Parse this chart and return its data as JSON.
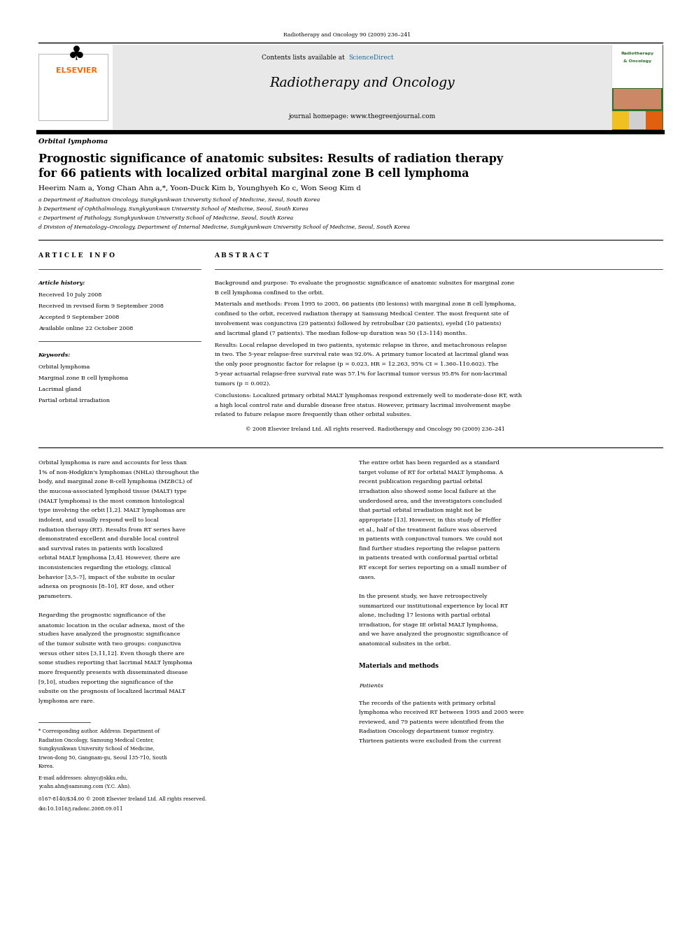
{
  "page_width": 9.92,
  "page_height": 13.23,
  "bg_color": "#ffffff",
  "journal_ref": "Radiotherapy and Oncology 90 (2009) 236–241",
  "elsevier_color": "#FF6600",
  "sciencedirect_color": "#1a6496",
  "journal_name": "Radiotherapy and Oncology",
  "journal_homepage": "journal homepage: www.thegreenjournal.com",
  "contents_text": "Contents lists available at",
  "sciencedirect_text": "ScienceDirect",
  "article_type": "Orbital lymphoma",
  "title_line1": "Prognostic significance of anatomic subsites: Results of radiation therapy",
  "title_line2": "for 66 patients with localized orbital marginal zone B cell lymphoma",
  "authors": "Heerim Nam a, Yong Chan Ahn a,*, Yoon-Duck Kim b, Younghyeh Ko c, Won Seog Kim d",
  "affil1": "a Department of Radiation Oncology, Sungkyunkwan University School of Medicine, Seoul, South Korea",
  "affil2": "b Department of Ophthalmology, Sungkyunkwan University School of Medicine, Seoul, South Korea",
  "affil3": "c Department of Pathology, Sungkyunkwan University School of Medicine, Seoul, South Korea",
  "affil4": "d Division of Hematology–Oncology, Department of Internal Medicine, Sungkyunkwan University School of Medicine, Seoul, South Korea",
  "article_info_header": "A R T I C L E   I N F O",
  "abstract_header": "A B S T R A C T",
  "article_history_label": "Article history:",
  "received1": "Received 10 July 2008",
  "revised": "Received in revised form 9 September 2008",
  "accepted": "Accepted 9 September 2008",
  "available": "Available online 22 October 2008",
  "keywords_label": "Keywords:",
  "kw1": "Orbital lymphoma",
  "kw2": "Marginal zone B cell lymphoma",
  "kw3": "Lacrimal gland",
  "kw4": "Partial orbital irradiation",
  "abstract_bg": "Background and purpose:",
  "abstract_bg_text": "  To evaluate the prognostic significance of anatomic subsites for marginal zone B cell lymphoma confined to the orbit.",
  "abstract_mm": "Materials and methods:",
  "abstract_mm_text": "  From 1995 to 2005, 66 patients (80 lesions) with marginal zone B cell lymphoma, confined to the orbit, received radiation therapy at Samsung Medical Center. The most frequent site of involvement was conjunctiva (29 patients) followed by retrobulbar (20 patients), eyelid (10 patients) and lacrimal gland (7 patients). The median follow-up duration was 50 (13–114) months.",
  "abstract_r": "Results:",
  "abstract_r_text": "  Local relapse developed in two patients, systemic relapse in three, and metachronous relapse in two. The 5-year relapse-free survival rate was 92.0%. A primary tumor located at lacrimal gland was the only poor prognostic factor for relapse (p = 0.023, HR = 12.263, 95% CI = 1.360–110.602). The 5-year actuarial relapse-free survival rate was 57.1% for lacrimal tumor versus 95.8% for non-lacrimal tumors (p = 0.002).",
  "abstract_c": "Conclusions:",
  "abstract_c_text": "  Localized primary orbital MALT lymphomas respond extremely well to moderate-dose RT, with a high local control rate and durable disease free status. However, primary lacrimal involvement maybe related to future relapse more frequently than other orbital subsites.",
  "copyright": "© 2008 Elsevier Ireland Ltd. All rights reserved. Radiotherapy and Oncology 90 (2009) 236–241",
  "body_left_col": [
    "    Orbital lymphoma is rare and accounts for less than 1% of non-Hodgkin's lymphomas (NHLs) throughout the body, and marginal zone B-cell lymphoma (MZBCL) of the mucosa-associated lymphoid tissue (MALT) type (MALT lymphoma) is the most common histological type involving the orbit [1,2]. MALT lymphomas are indolent, and usually respond well to local radiation therapy (RT). Results from RT series have demonstrated excellent and durable local control and survival rates in patients with localized orbital MALT lymphoma [3,4]. However, there are inconsistencies regarding the etiology, clinical behavior [3,5–7], impact of the subsite in ocular adnexa on prognosis [8–10], RT dose, and other parameters.",
    "    Regarding the prognostic significance of the anatomic location in the ocular adnexa, most of the studies have analyzed the prognostic significance of the tumor subsite with two groups: conjunctiva versus other sites [3,11,12]. Even though there are some studies reporting that lacrimal MALT lymphoma more frequently presents with disseminated disease [9,10], studies reporting the significance of the subsite on the prognosis of localized lacrimal MALT lymphoma are rare."
  ],
  "body_right_col": [
    "    The entire orbit has been regarded as a standard target volume of RT for orbital MALT lymphoma. A recent publication regarding partial orbital irradiation also showed some local failure at the underdosed area, and the investigators concluded that partial orbital irradiation might not be appropriate [13]. However, in this study of Pfeffer et al., half of the treatment failure was observed in patients with conjunctival tumors. We could not find further studies reporting the relapse pattern in patients treated with conformal partial orbital RT except for series reporting on a small number of cases.",
    "    In the present study, we have retrospectively summarized our institutional experience by local RT alone, including 17 lesions with partial orbital irradiation, for stage IE orbital MALT lymphoma, and we have analyzed the prognostic significance of anatomical subsites in the orbit.",
    "Materials and methods",
    "Patients",
    "    The records of the patients with primary orbital lymphoma who received RT between 1995 and 2005 were reviewed, and 79 patients were identified from the Radiation Oncology department tumor registry. Thirteen patients were excluded from the current"
  ],
  "footnote1": "* Corresponding author. Address: Department of Radiation Oncology, Samsung Medical Center, Sungkyunkwan University School of Medicine, Irwon-dong 50, Gangnam-gu, Seoul 135-710, South Korea.",
  "footnote2": "   E-mail addresses: ahnyc@skku.edu, ycahn.ahn@samsung.com (Y.C. Ahn).",
  "footnote3": "0167-8140/$34.00 © 2008 Elsevier Ireland Ltd. All rights reserved.",
  "footnote4": "doi:10.1016/j.radonc.2008.09.011"
}
